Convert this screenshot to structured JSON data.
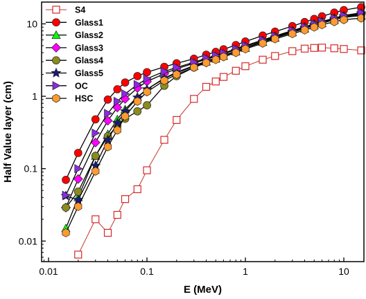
{
  "chart_data": {
    "type": "scatter",
    "xlabel": "E (MeV)",
    "ylabel": "Half Value layer (cm)",
    "x_scale": "log",
    "y_scale": "log",
    "xlim": [
      0.0085,
      16
    ],
    "ylim": [
      0.0052,
      20
    ],
    "x_ticks": [
      {
        "value": 0.01,
        "label": "0.01"
      },
      {
        "value": 0.1,
        "label": "0.1"
      },
      {
        "value": 1,
        "label": "1"
      },
      {
        "value": 10,
        "label": "10"
      }
    ],
    "y_ticks": [
      {
        "value": 0.01,
        "label": "0.01"
      },
      {
        "value": 0.1,
        "label": "0.1"
      },
      {
        "value": 1,
        "label": "1"
      },
      {
        "value": 10,
        "label": "10"
      }
    ],
    "grid": false,
    "legend_position": "top-left",
    "x": [
      0.015,
      0.02,
      0.03,
      0.04,
      0.05,
      0.06,
      0.08,
      0.1,
      0.15,
      0.2,
      0.3,
      0.4,
      0.5,
      0.6,
      0.8,
      1,
      1.5,
      2,
      3,
      4,
      5,
      6,
      8,
      10,
      15
    ],
    "series": [
      {
        "name": "S4",
        "color": "#d62728",
        "marker": "square-open",
        "line_color": "#c0392b",
        "line_width": 1,
        "values": [
          null,
          0.0065,
          0.02,
          0.013,
          0.023,
          0.038,
          0.052,
          0.095,
          0.25,
          0.47,
          0.92,
          1.35,
          1.6,
          1.85,
          2.25,
          2.6,
          3.2,
          3.6,
          4.2,
          4.55,
          4.65,
          4.7,
          4.6,
          4.5,
          4.3
        ]
      },
      {
        "name": "Glass1",
        "color": "#ff0000",
        "marker": "circle",
        "line_color": "#000000",
        "line_width": 1.3,
        "values": [
          0.07,
          0.165,
          0.48,
          0.9,
          1.25,
          1.55,
          1.9,
          2.15,
          2.55,
          2.85,
          3.3,
          3.75,
          4.1,
          4.45,
          5.1,
          5.7,
          6.9,
          7.8,
          9.3,
          10.6,
          11.7,
          12.7,
          14.3,
          15.5,
          17.0
        ]
      },
      {
        "name": "Glass2",
        "color": "#00ff00",
        "marker": "triangle-up",
        "line_color": "#000000",
        "line_width": 1.3,
        "values": [
          0.015,
          0.04,
          0.15,
          0.3,
          0.48,
          0.66,
          0.98,
          1.25,
          1.75,
          2.1,
          2.6,
          3.0,
          3.3,
          3.6,
          4.15,
          4.65,
          5.6,
          6.4,
          7.6,
          8.6,
          9.5,
          10.2,
          11.4,
          12.3,
          13.0
        ]
      },
      {
        "name": "Glass3",
        "color": "#ff00ff",
        "marker": "diamond",
        "line_color": "#000000",
        "line_width": 1.3,
        "values": [
          0.029,
          0.072,
          0.23,
          0.46,
          0.7,
          0.92,
          1.3,
          1.6,
          2.05,
          2.4,
          2.85,
          3.25,
          3.55,
          3.85,
          4.4,
          4.9,
          5.9,
          6.7,
          8.0,
          9.0,
          9.9,
          10.7,
          11.9,
          12.8,
          13.8
        ]
      },
      {
        "name": "Glass4",
        "color": "#8b8b1e",
        "marker": "circle",
        "line_color": "#000000",
        "line_width": 1.3,
        "values": [
          0.029,
          0.048,
          0.15,
          0.28,
          0.39,
          0.49,
          0.62,
          0.75,
          1.4,
          1.9,
          2.5,
          3.0,
          3.35,
          3.65,
          4.2,
          4.7,
          5.7,
          6.5,
          7.8,
          8.8,
          9.7,
          10.5,
          11.7,
          12.6,
          13.4
        ]
      },
      {
        "name": "Glass5",
        "color": "#1a1a7a",
        "marker": "star",
        "line_color": "#000000",
        "line_width": 1.3,
        "values": [
          0.042,
          0.037,
          0.11,
          0.25,
          0.43,
          0.62,
          0.96,
          1.25,
          1.78,
          2.15,
          2.65,
          3.05,
          3.35,
          3.65,
          4.2,
          4.7,
          5.7,
          6.5,
          7.8,
          8.9,
          9.8,
          10.6,
          11.8,
          12.8,
          14.0
        ]
      },
      {
        "name": "OC",
        "color": "#8a2be2",
        "marker": "triangle-right",
        "line_color": "#000000",
        "line_width": 1.3,
        "values": [
          0.043,
          0.1,
          0.31,
          0.58,
          0.85,
          1.08,
          1.45,
          1.75,
          2.2,
          2.5,
          2.95,
          3.35,
          3.65,
          3.95,
          4.5,
          5.0,
          6.0,
          6.8,
          8.1,
          9.1,
          10.0,
          10.8,
          12.0,
          13.0,
          14.3
        ]
      },
      {
        "name": "HSC",
        "color": "#ff9a2e",
        "marker": "hexagon",
        "line_color": "#000000",
        "line_width": 1.3,
        "values": [
          0.013,
          0.03,
          0.092,
          0.2,
          0.34,
          0.53,
          0.85,
          1.15,
          1.65,
          2.0,
          2.5,
          2.9,
          3.2,
          3.5,
          4.0,
          4.5,
          5.4,
          6.2,
          7.3,
          8.2,
          9.0,
          9.7,
          10.7,
          11.4,
          12.0
        ]
      }
    ]
  }
}
